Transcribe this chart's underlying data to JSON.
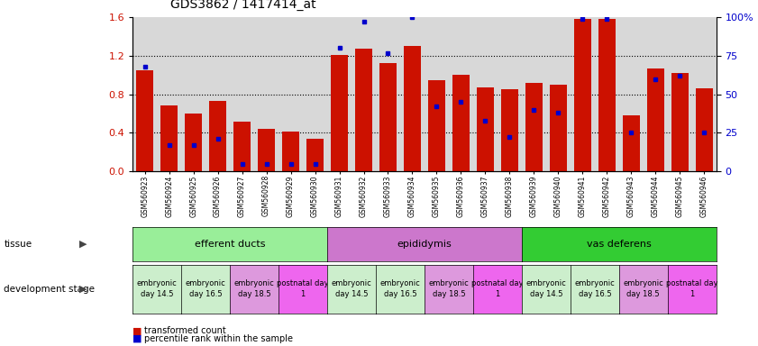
{
  "title": "GDS3862 / 1417414_at",
  "samples": [
    "GSM560923",
    "GSM560924",
    "GSM560925",
    "GSM560926",
    "GSM560927",
    "GSM560928",
    "GSM560929",
    "GSM560930",
    "GSM560931",
    "GSM560932",
    "GSM560933",
    "GSM560934",
    "GSM560935",
    "GSM560936",
    "GSM560937",
    "GSM560938",
    "GSM560939",
    "GSM560940",
    "GSM560941",
    "GSM560942",
    "GSM560943",
    "GSM560944",
    "GSM560945",
    "GSM560946"
  ],
  "red_values": [
    1.05,
    0.68,
    0.6,
    0.73,
    0.52,
    0.44,
    0.41,
    0.34,
    1.21,
    1.27,
    1.12,
    1.3,
    0.95,
    1.0,
    0.87,
    0.85,
    0.92,
    0.9,
    1.58,
    1.58,
    0.58,
    1.07,
    1.02,
    0.86
  ],
  "blue_pct": [
    68,
    17,
    17,
    21,
    5,
    5,
    5,
    5,
    80,
    97,
    77,
    100,
    42,
    45,
    33,
    22,
    40,
    38,
    99,
    99,
    25,
    60,
    62,
    25
  ],
  "ylim_left": [
    0,
    1.6
  ],
  "ylim_right": [
    0,
    100
  ],
  "yticks_left": [
    0.0,
    0.4,
    0.8,
    1.2,
    1.6
  ],
  "yticks_right": [
    0,
    25,
    50,
    75,
    100
  ],
  "bar_color": "#cc1100",
  "dot_color": "#0000cc",
  "bg_color": "#d8d8d8",
  "tissue_groups": [
    {
      "label": "efferent ducts",
      "start": 0,
      "end": 7,
      "color": "#99ee99"
    },
    {
      "label": "epididymis",
      "start": 8,
      "end": 15,
      "color": "#cc77cc"
    },
    {
      "label": "vas deferens",
      "start": 16,
      "end": 23,
      "color": "#33cc33"
    }
  ],
  "dev_groups": [
    {
      "label": "embryonic\nday 14.5",
      "start": 0,
      "end": 1,
      "color": "#cceecc"
    },
    {
      "label": "embryonic\nday 16.5",
      "start": 2,
      "end": 3,
      "color": "#cceecc"
    },
    {
      "label": "embryonic\nday 18.5",
      "start": 4,
      "end": 5,
      "color": "#dd99dd"
    },
    {
      "label": "postnatal day\n1",
      "start": 6,
      "end": 7,
      "color": "#ee66ee"
    },
    {
      "label": "embryonic\nday 14.5",
      "start": 8,
      "end": 9,
      "color": "#cceecc"
    },
    {
      "label": "embryonic\nday 16.5",
      "start": 10,
      "end": 11,
      "color": "#cceecc"
    },
    {
      "label": "embryonic\nday 18.5",
      "start": 12,
      "end": 13,
      "color": "#dd99dd"
    },
    {
      "label": "postnatal day\n1",
      "start": 14,
      "end": 15,
      "color": "#ee66ee"
    },
    {
      "label": "embryonic\nday 14.5",
      "start": 16,
      "end": 17,
      "color": "#cceecc"
    },
    {
      "label": "embryonic\nday 16.5",
      "start": 18,
      "end": 19,
      "color": "#cceecc"
    },
    {
      "label": "embryonic\nday 18.5",
      "start": 20,
      "end": 21,
      "color": "#dd99dd"
    },
    {
      "label": "postnatal day\n1",
      "start": 22,
      "end": 23,
      "color": "#ee66ee"
    }
  ],
  "tissue_label": "tissue",
  "dev_label": "development stage",
  "legend_red": "transformed count",
  "legend_blue": "percentile rank within the sample"
}
